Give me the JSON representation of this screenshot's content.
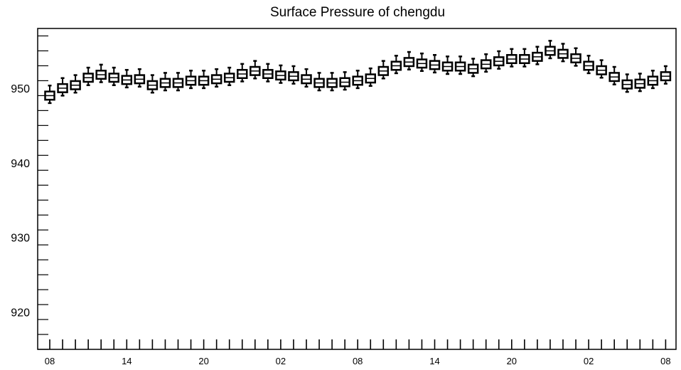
{
  "chart_data": {
    "type": "box",
    "title": "Surface Pressure of chengdu",
    "xlabel": "",
    "ylabel": "",
    "ylim": [
      915,
      958
    ],
    "yticks": [
      920,
      930,
      940,
      950
    ],
    "xtick_labels": [
      "08",
      "14",
      "20",
      "02",
      "08",
      "14",
      "20",
      "02",
      "08"
    ],
    "xtick_positions": [
      0,
      6,
      12,
      18,
      24,
      30,
      36,
      42,
      48
    ],
    "grid": false,
    "medians": [
      949.0,
      950.0,
      950.4,
      951.4,
      951.8,
      951.4,
      951.1,
      951.2,
      950.4,
      950.7,
      950.7,
      951.0,
      951.0,
      951.2,
      951.4,
      951.9,
      952.3,
      951.9,
      951.7,
      951.6,
      951.2,
      950.7,
      950.7,
      950.8,
      951.0,
      951.3,
      952.3,
      953.0,
      953.5,
      953.3,
      953.1,
      952.9,
      952.9,
      952.6,
      953.2,
      953.6,
      953.9,
      953.9,
      954.2,
      955.0,
      954.6,
      954.0,
      953.0,
      952.4,
      951.5,
      950.5,
      950.6,
      951.0,
      951.6
    ],
    "box_half_height": 0.55,
    "whisker_low": 1.0,
    "whisker_high": 1.35
  }
}
